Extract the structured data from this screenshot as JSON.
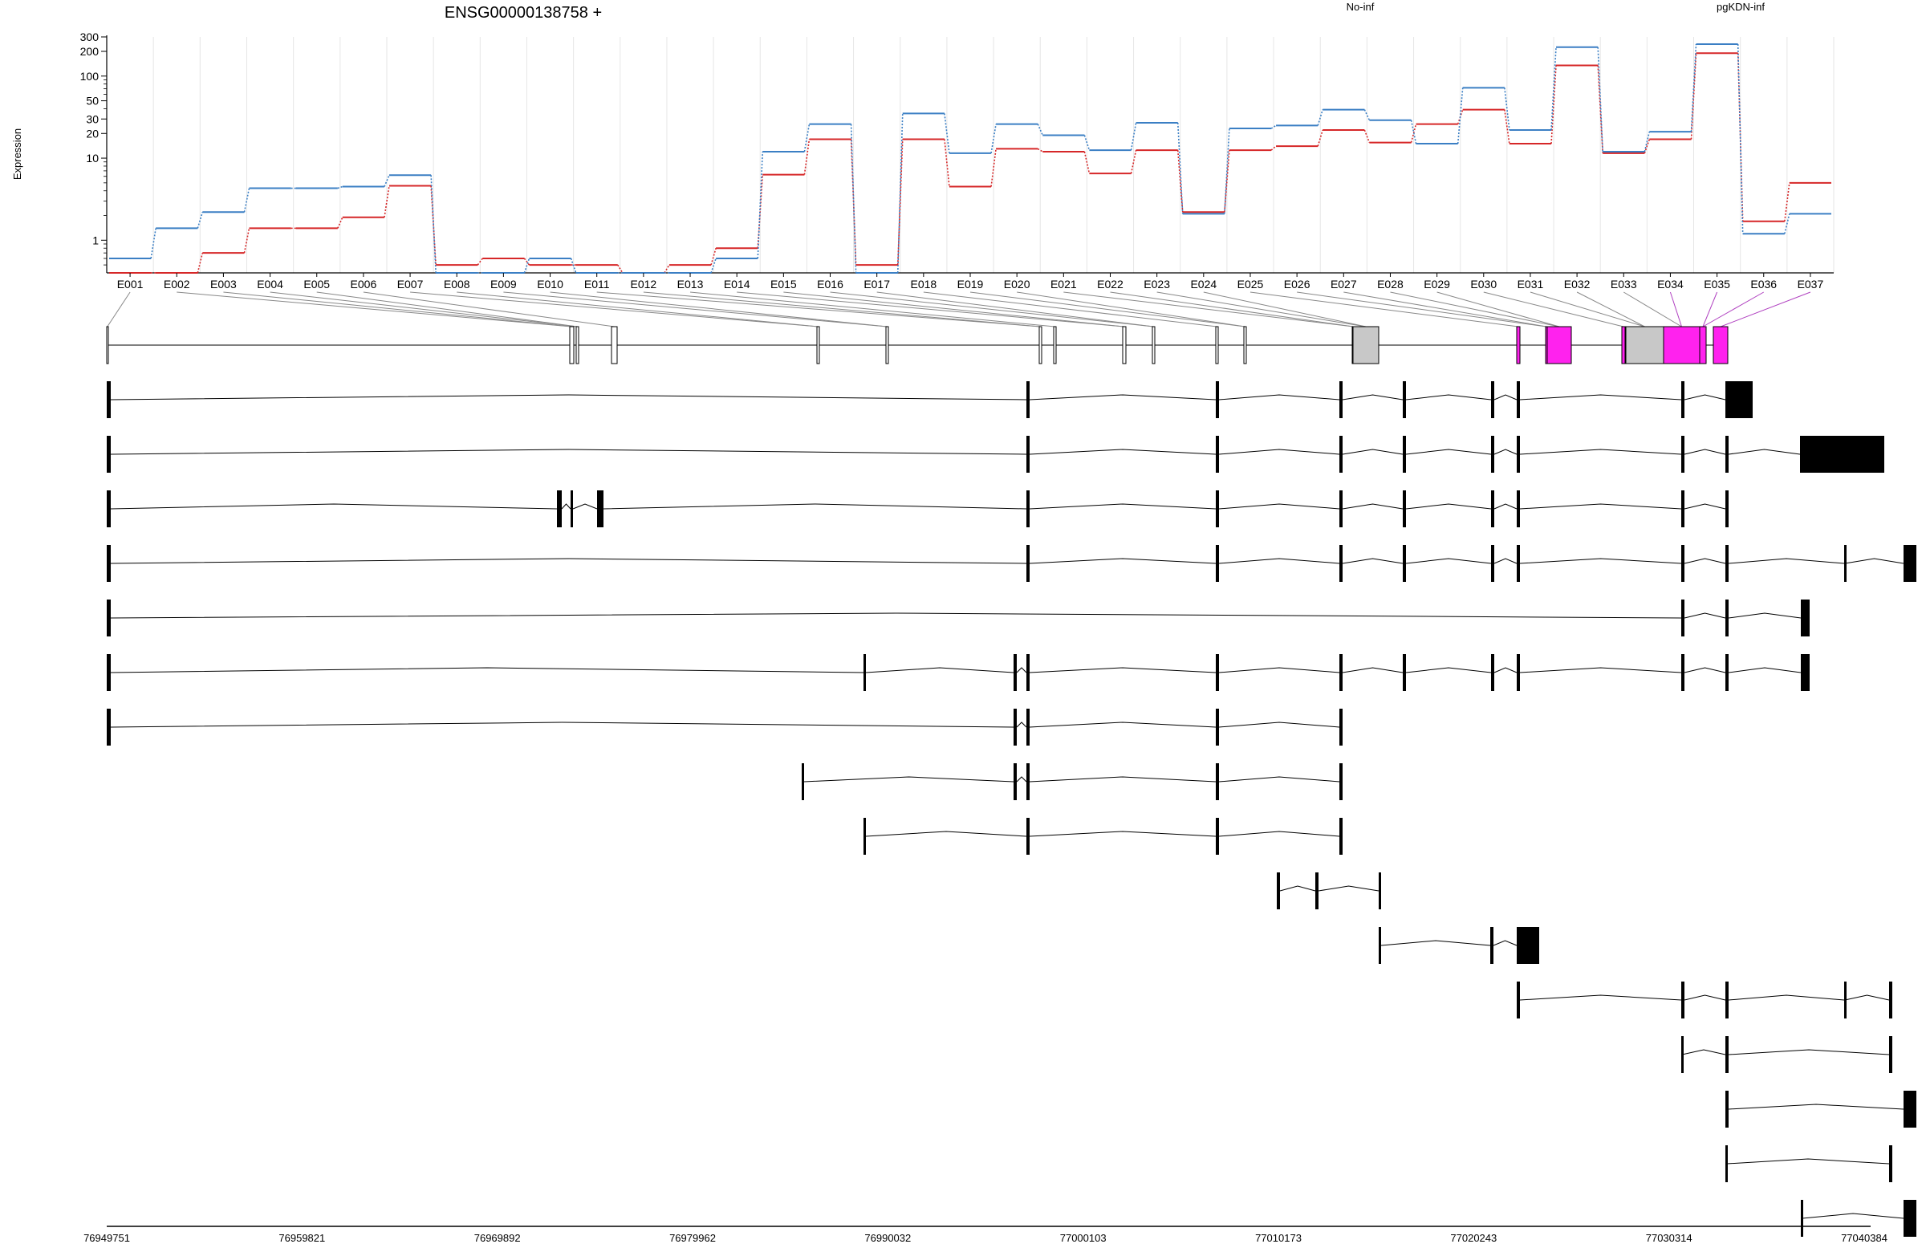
{
  "chart_data": {
    "type": "line",
    "title": "ENSG00000138758 +",
    "ylabel": "Expression",
    "yscale": "log",
    "ylim": [
      0.4,
      300
    ],
    "yticks": [
      "1",
      "10",
      "20",
      "30",
      "50",
      "100",
      "200",
      "300"
    ],
    "grid": "vertical",
    "legend_placement": "top",
    "categories": [
      "E001",
      "E002",
      "E003",
      "E004",
      "E005",
      "E006",
      "E007",
      "E008",
      "E009",
      "E010",
      "E011",
      "E012",
      "E013",
      "E014",
      "E015",
      "E016",
      "E017",
      "E018",
      "E019",
      "E020",
      "E021",
      "E022",
      "E023",
      "E024",
      "E025",
      "E026",
      "E027",
      "E028",
      "E029",
      "E030",
      "E031",
      "E032",
      "E033",
      "E034",
      "E035",
      "E036",
      "E037"
    ],
    "series": [
      {
        "name": "No-inf",
        "color": "#d62728",
        "values": [
          0.4,
          0.4,
          0.7,
          1.4,
          1.4,
          1.9,
          4.6,
          0.5,
          0.6,
          0.5,
          0.5,
          0.4,
          0.5,
          0.8,
          6.3,
          17,
          0.5,
          17,
          4.5,
          13,
          12,
          6.5,
          12.5,
          2.2,
          12.5,
          14,
          22,
          15.5,
          26,
          39,
          15,
          135,
          11.5,
          17,
          190,
          1.7,
          5
        ]
      },
      {
        "name": "pgKDN-inf",
        "color": "#3b7fc4",
        "values": [
          0.6,
          1.4,
          2.2,
          4.3,
          4.3,
          4.5,
          6.2,
          0.4,
          0.4,
          0.6,
          0.4,
          0.4,
          0.4,
          0.6,
          12,
          26,
          0.4,
          35,
          11.5,
          26,
          19,
          12.5,
          27,
          2.1,
          23,
          25,
          39,
          29,
          15,
          72,
          22,
          225,
          12,
          21,
          245,
          1.2,
          2.1
        ]
      }
    ],
    "genomic_axis": {
      "tick_labels": [
        "76949751",
        "76959821",
        "76969892",
        "76979962",
        "76990032",
        "77000103",
        "77010173",
        "77020243",
        "77030314",
        "77040384"
      ]
    },
    "gene_model": {
      "exons": [
        [
          0,
          1.5
        ],
        [
          577,
          582
        ],
        [
          585,
          588
        ],
        [
          629,
          636
        ],
        [
          885,
          888
        ],
        [
          971,
          974
        ],
        [
          1162,
          1165
        ],
        [
          1180,
          1183
        ],
        [
          1266,
          1270
        ],
        [
          1303,
          1306
        ],
        [
          1382,
          1385
        ],
        [
          1417,
          1420
        ],
        [
          1552,
          1555
        ],
        [
          1553,
          1585
        ],
        [
          1757,
          1761
        ],
        [
          1793,
          1795
        ],
        [
          1795,
          1825
        ],
        [
          1888,
          1892
        ],
        [
          1893,
          1940
        ],
        [
          1940,
          1985
        ],
        [
          1985,
          1993
        ],
        [
          2002,
          2020
        ]
      ],
      "highlighted_bins": [
        "E034",
        "E035",
        "E036",
        "E037"
      ],
      "highlight_color": "#ff22ee"
    },
    "transcripts": [
      [
        [
          0,
          5
        ],
        [
          1146,
          1150
        ],
        [
          1382,
          1386
        ],
        [
          1536,
          1540
        ],
        [
          1615,
          1619
        ],
        [
          1725,
          1729
        ],
        [
          1757,
          1761
        ],
        [
          1962,
          1966
        ],
        [
          2017,
          2051
        ]
      ],
      [
        [
          0,
          5
        ],
        [
          1146,
          1150
        ],
        [
          1382,
          1386
        ],
        [
          1536,
          1540
        ],
        [
          1615,
          1619
        ],
        [
          1725,
          1729
        ],
        [
          1757,
          1761
        ],
        [
          1962,
          1966
        ],
        [
          2017,
          2021
        ],
        [
          2110,
          2215
        ]
      ],
      [
        [
          0,
          5
        ],
        [
          561,
          567
        ],
        [
          578,
          581
        ],
        [
          611,
          619
        ],
        [
          1146,
          1150
        ],
        [
          1382,
          1386
        ],
        [
          1536,
          1540
        ],
        [
          1615,
          1619
        ],
        [
          1725,
          1729
        ],
        [
          1757,
          1761
        ],
        [
          1962,
          1966
        ],
        [
          2017,
          2021
        ]
      ],
      [
        [
          0,
          5
        ],
        [
          1146,
          1150
        ],
        [
          1382,
          1386
        ],
        [
          1536,
          1540
        ],
        [
          1615,
          1619
        ],
        [
          1725,
          1729
        ],
        [
          1757,
          1761
        ],
        [
          1962,
          1966
        ],
        [
          2017,
          2021
        ],
        [
          2165,
          2166
        ],
        [
          2239,
          2255
        ]
      ],
      [
        [
          0,
          5
        ],
        [
          1962,
          1966
        ],
        [
          2017,
          2021
        ],
        [
          2111,
          2122
        ]
      ],
      [
        [
          0,
          5
        ],
        [
          943,
          946
        ],
        [
          1130,
          1134
        ],
        [
          1146,
          1150
        ],
        [
          1382,
          1386
        ],
        [
          1536,
          1540
        ],
        [
          1615,
          1619
        ],
        [
          1725,
          1729
        ],
        [
          1757,
          1761
        ],
        [
          1962,
          1966
        ],
        [
          2017,
          2021
        ],
        [
          2111,
          2122
        ]
      ],
      [
        [
          0,
          5
        ],
        [
          1130,
          1134
        ],
        [
          1146,
          1150
        ],
        [
          1382,
          1386
        ],
        [
          1536,
          1540
        ]
      ],
      [
        [
          866,
          869
        ],
        [
          1130,
          1134
        ],
        [
          1146,
          1150
        ],
        [
          1382,
          1386
        ],
        [
          1536,
          1540
        ]
      ],
      [
        [
          943,
          946
        ],
        [
          1146,
          1150
        ],
        [
          1382,
          1386
        ],
        [
          1536,
          1540
        ]
      ],
      [
        [
          1458,
          1462
        ],
        [
          1506,
          1510
        ],
        [
          1585,
          1588
        ]
      ],
      [
        [
          1585,
          1588
        ],
        [
          1724,
          1728
        ],
        [
          1757,
          1785
        ]
      ],
      [
        [
          1757,
          1761
        ],
        [
          1962,
          1966
        ],
        [
          2017,
          2021
        ],
        [
          2165,
          2166
        ],
        [
          2221,
          2225
        ]
      ],
      [
        [
          1962,
          1963
        ],
        [
          2017,
          2021
        ],
        [
          2221,
          2225
        ]
      ],
      [
        [
          2017,
          2021
        ],
        [
          2239,
          2255
        ]
      ],
      [
        [
          2017,
          2019
        ],
        [
          2221,
          2225
        ]
      ],
      [
        [
          2111,
          2113
        ],
        [
          2239,
          2255
        ]
      ]
    ]
  }
}
